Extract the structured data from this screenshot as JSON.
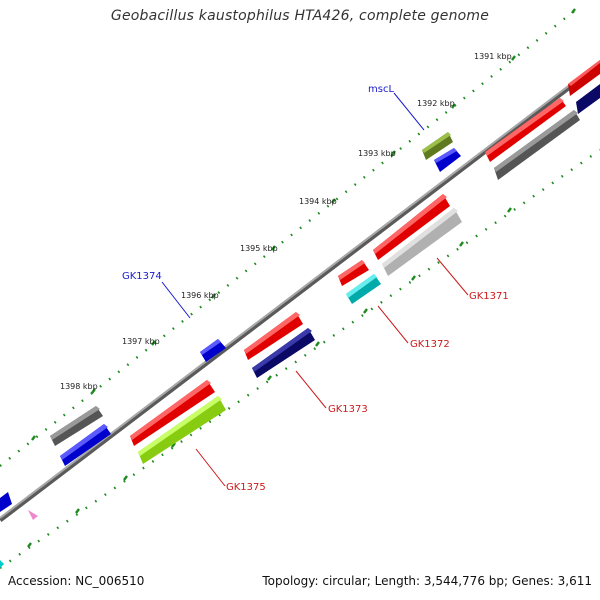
{
  "header": {
    "title": "Geobacillus kaustophilus HTA426, complete genome"
  },
  "footer": {
    "accession": "Accession: NC_006510",
    "summary": "Topology: circular; Length: 3,544,776 bp; Genes: 3,611"
  },
  "colors": {
    "backbone": "#8c8c8c",
    "tick": "#1f8a1f",
    "plus_label": "#1a1acc",
    "minus_label": "#cc1a1a"
  },
  "ticks": [
    {
      "label": "1391 kbp"
    },
    {
      "label": "1392 kbp"
    },
    {
      "label": "1393 kbp"
    },
    {
      "label": "1394 kbp"
    },
    {
      "label": "1395 kbp"
    },
    {
      "label": "1396 kbp"
    },
    {
      "label": "1397 kbp"
    },
    {
      "label": "1398 kbp"
    }
  ],
  "gene_labels": [
    {
      "name": "mscL",
      "color": "#1a1acc"
    },
    {
      "name": "GK1374",
      "color": "#1a1acc"
    },
    {
      "name": "GK1371",
      "color": "#cc1a1a"
    },
    {
      "name": "GK1372",
      "color": "#cc1a1a"
    },
    {
      "name": "GK1373",
      "color": "#cc1a1a"
    },
    {
      "name": "GK1375",
      "color": "#cc1a1a"
    }
  ]
}
